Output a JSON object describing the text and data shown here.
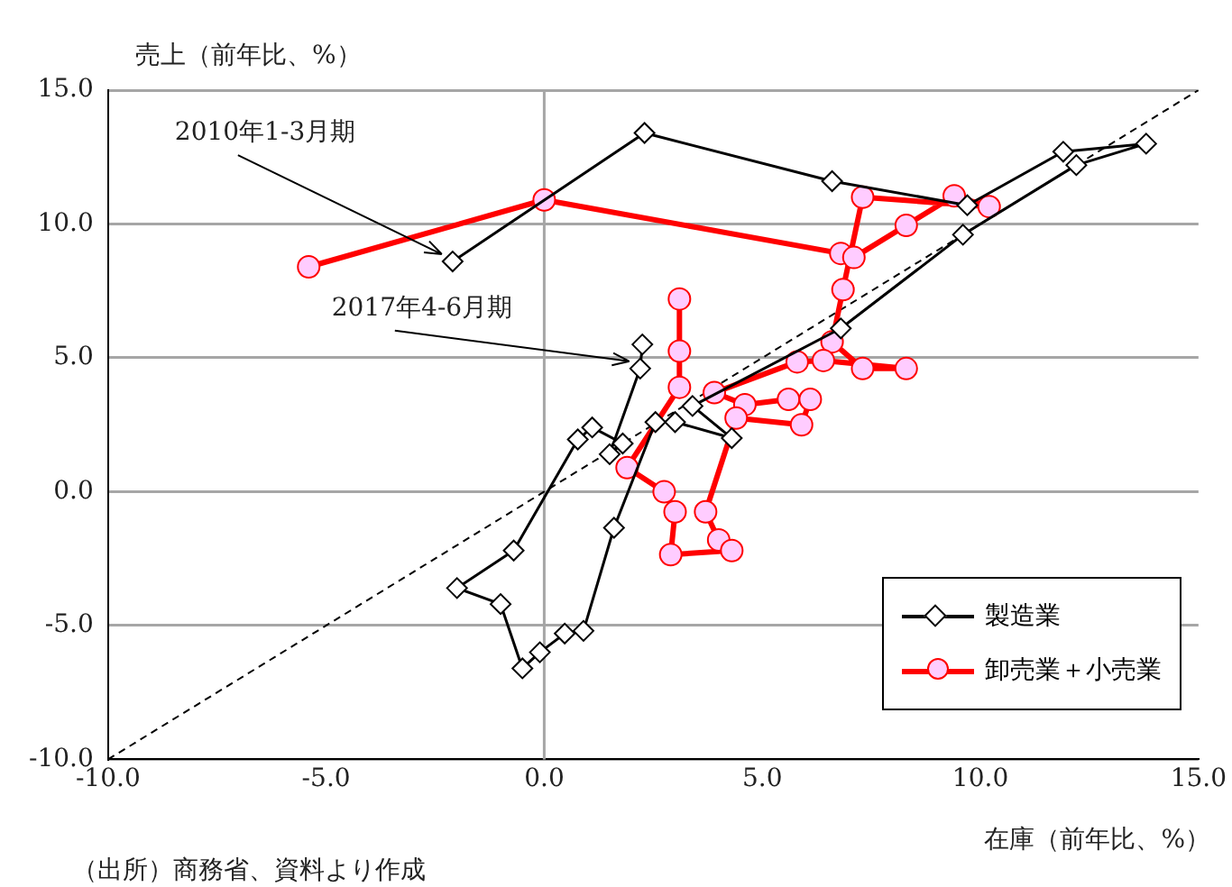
{
  "chart_data": {
    "type": "line",
    "xlabel": "在庫（前年比、%）",
    "ylabel": "売上（前年比、%）",
    "xlim": [
      -10,
      15
    ],
    "ylim": [
      -10,
      15
    ],
    "xticks": [
      {
        "value": -10,
        "label": "-10.0"
      },
      {
        "value": -5,
        "label": "-5.0"
      },
      {
        "value": 0,
        "label": "0.0"
      },
      {
        "value": 5,
        "label": "5.0"
      },
      {
        "value": 10,
        "label": "10.0"
      },
      {
        "value": 15,
        "label": "15.0"
      }
    ],
    "yticks": [
      {
        "value": -10,
        "label": "-10.0"
      },
      {
        "value": -5,
        "label": "-5.0"
      },
      {
        "value": 0,
        "label": "0.0"
      },
      {
        "value": 5,
        "label": "5.0"
      },
      {
        "value": 10,
        "label": "10.0"
      },
      {
        "value": 15,
        "label": "15.0"
      }
    ],
    "grid": "y",
    "legend": "bottom right",
    "ref_lines": [
      {
        "axis": "x",
        "value": 0,
        "color": "#a6a6a6"
      }
    ],
    "series": [
      {
        "type": "line",
        "color": "#000000",
        "marker": "none",
        "line_style": "dashed",
        "x": [
          -10,
          15
        ],
        "values": [
          -10,
          15
        ]
      },
      {
        "name": "製造業",
        "color": "#000000",
        "marker": "diamond",
        "line_style": "solid",
        "x": [
          -2.1,
          2.3,
          6.6,
          9.7,
          11.9,
          13.8,
          12.2,
          9.6,
          6.8,
          3.4,
          4.3,
          3.0,
          2.55,
          1.6,
          0.9,
          0.47,
          -0.1,
          -0.5,
          -1.0,
          -2.0,
          -0.7,
          0.77,
          1.1,
          1.8,
          1.5,
          2.2,
          2.25
        ],
        "values": [
          8.6,
          13.4,
          11.6,
          10.7,
          12.7,
          13.0,
          12.2,
          9.6,
          6.1,
          3.2,
          2.0,
          2.6,
          2.6,
          -1.35,
          -5.2,
          -5.3,
          -6.0,
          -6.6,
          -4.2,
          -3.6,
          -2.2,
          1.95,
          2.4,
          1.8,
          1.4,
          4.6,
          5.5
        ]
      },
      {
        "name": "卸売業＋小売業",
        "color": "#ff0000",
        "marker": "circle",
        "line_style": "solid",
        "x": [
          -5.4,
          0.0,
          6.8,
          7.1,
          8.3,
          9.4,
          10.2,
          7.3,
          6.85,
          6.6,
          7.3,
          8.3,
          6.4,
          5.8,
          3.9,
          4.6,
          5.6,
          6.1,
          5.9,
          4.4,
          3.7,
          4.0,
          4.3,
          2.9,
          3.0,
          2.75,
          1.9,
          3.1,
          3.1,
          3.1
        ],
        "values": [
          8.4,
          10.9,
          8.9,
          8.75,
          9.95,
          11.05,
          10.65,
          11.0,
          7.55,
          5.6,
          4.6,
          4.6,
          4.9,
          4.85,
          3.7,
          3.25,
          3.45,
          3.45,
          2.5,
          2.75,
          -0.75,
          -1.8,
          -2.2,
          -2.35,
          -0.75,
          0.0,
          0.9,
          3.9,
          7.2,
          5.25
        ]
      }
    ],
    "annotations": [
      {
        "text": "2010年1-3月期",
        "x": -2.1,
        "y": 8.6
      },
      {
        "text": "2017年4-6月期",
        "x": 2.2,
        "y": 4.6
      },
      "（出所）商務省、資料より作成"
    ]
  }
}
